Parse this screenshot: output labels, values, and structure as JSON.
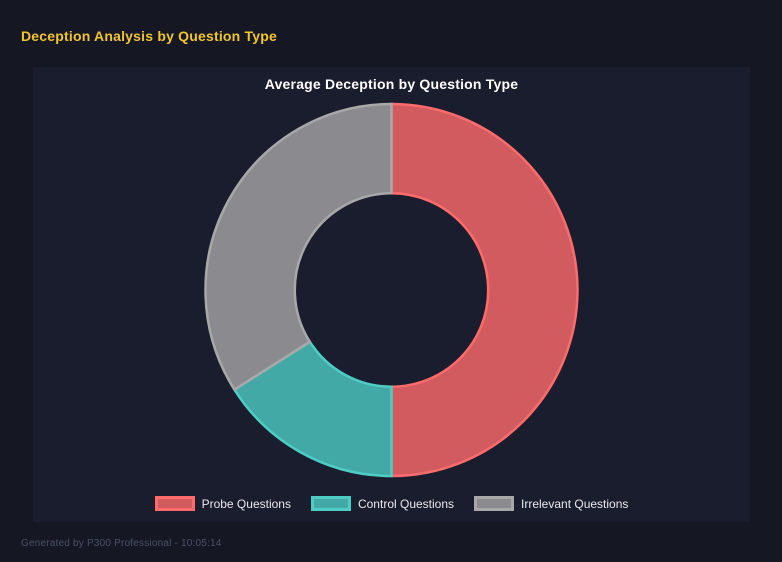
{
  "page": {
    "title": "Deception Analysis by Question Type",
    "footer": "Generated by P300 Professional - 10:05:14"
  },
  "chart_data": {
    "type": "pie",
    "variant": "doughnut",
    "title": "Average Deception by Question Type",
    "labels": [
      "Probe Questions",
      "Control Questions",
      "Irrelevant Questions"
    ],
    "values": [
      50,
      16,
      34
    ],
    "start_angle_deg": 0,
    "direction": "clockwise",
    "cutout_percent": 52,
    "legend_position": "bottom",
    "grid": false,
    "segment_colors": [
      {
        "fill": "rgba(255,107,107,0.8)",
        "border": "#ff6b6b"
      },
      {
        "fill": "rgba(78,205,196,0.8)",
        "border": "#4ecdc4"
      },
      {
        "fill": "rgba(168,168,168,0.8)",
        "border": "#a8a8a8"
      }
    ]
  },
  "colors": {
    "page_bg": "#151823",
    "panel_bg": "#1a1d2d",
    "page_title": "#f2c52d",
    "chart_title": "#ffffff",
    "legend_text": "#e9e9ec",
    "footer_text": "#4a5066"
  }
}
